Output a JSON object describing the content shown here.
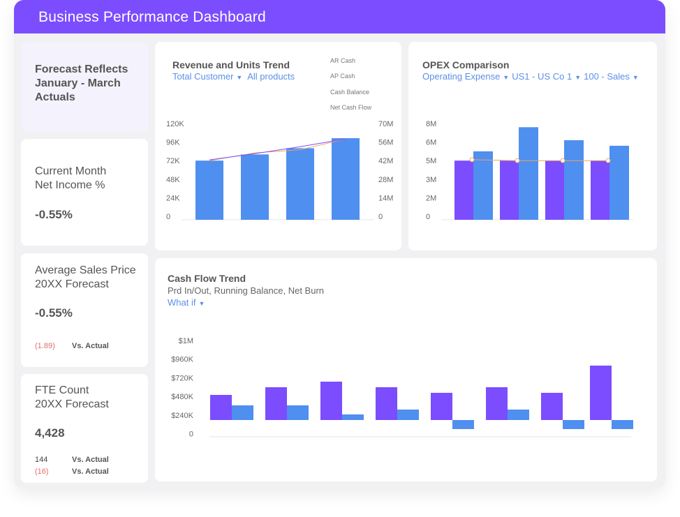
{
  "header": {
    "title": "Business Performance Dashboard"
  },
  "kpis": {
    "forecast": {
      "title": "Forecast Reflects January - March Actuals"
    },
    "net_income": {
      "line1": "Current Month",
      "line2": "Net Income %",
      "value": "-0.55%"
    },
    "avg_price": {
      "line1": "Average Sales Price",
      "line2": "20XX Forecast",
      "value": "-0.55%",
      "delta": "(1.89)",
      "delta_label": "Vs. Actual"
    },
    "fte": {
      "line1": "FTE Count",
      "line2": "20XX Forecast",
      "value": "4,428",
      "delta1": "144",
      "delta1_label": "Vs. Actual",
      "delta2": "(16)",
      "delta2_label": "Vs. Actual"
    }
  },
  "colors": {
    "purple": "#7b4dff",
    "blue": "#4f8fef",
    "orange": "#f0a35e",
    "negative": "#e66b6b"
  },
  "chart_data": [
    {
      "id": "revenue",
      "type": "bar",
      "title": "Revenue and Units Trend",
      "filters": [
        "Total Customer",
        "All products"
      ],
      "legend": [
        "AR Cash",
        "AP Cash",
        "Cash Balance",
        "Net Cash Flow"
      ],
      "y_ticks": [
        "120K",
        "96K",
        "72K",
        "48K",
        "24K",
        "0"
      ],
      "y2_ticks": [
        "70M",
        "56M",
        "42M",
        "28M",
        "14M",
        "0"
      ],
      "ylim": [
        0,
        120
      ],
      "bars": [
        72,
        80,
        88,
        101
      ],
      "line_purple": [
        73,
        81,
        90,
        100
      ],
      "line_orange": [
        72,
        82,
        86,
        100
      ]
    },
    {
      "id": "opex",
      "type": "bar",
      "title": "OPEX Comparison",
      "filters": [
        "Operating Expense",
        "US1 - US Co 1",
        "100 - Sales"
      ],
      "y_ticks": [
        "8M",
        "6M",
        "5M",
        "3M",
        "2M",
        "0"
      ],
      "tick_values": [
        8,
        6,
        5,
        3,
        2,
        0
      ],
      "series": [
        {
          "name": "purple",
          "values": [
            5,
            5,
            5,
            5
          ]
        },
        {
          "name": "blue",
          "values": [
            5.5,
            7.6,
            6.2,
            5.8
          ]
        }
      ],
      "line": [
        5.05,
        5,
        5,
        5
      ]
    },
    {
      "id": "cashflow",
      "type": "bar",
      "title": "Cash Flow Trend",
      "subtitle": "Prd In/Out, Running Balance, Net Burn",
      "filter": "What if",
      "y_ticks": [
        "$1M",
        "$960K",
        "$720K",
        "$480K",
        "$240K",
        "0"
      ],
      "series": [
        {
          "name": "purple",
          "values": [
            324,
            423,
            495,
            423,
            351,
            423,
            351,
            702
          ]
        },
        {
          "name": "blue",
          "values": [
            189,
            189,
            72,
            135,
            -117,
            135,
            -117,
            -117
          ]
        }
      ]
    }
  ]
}
